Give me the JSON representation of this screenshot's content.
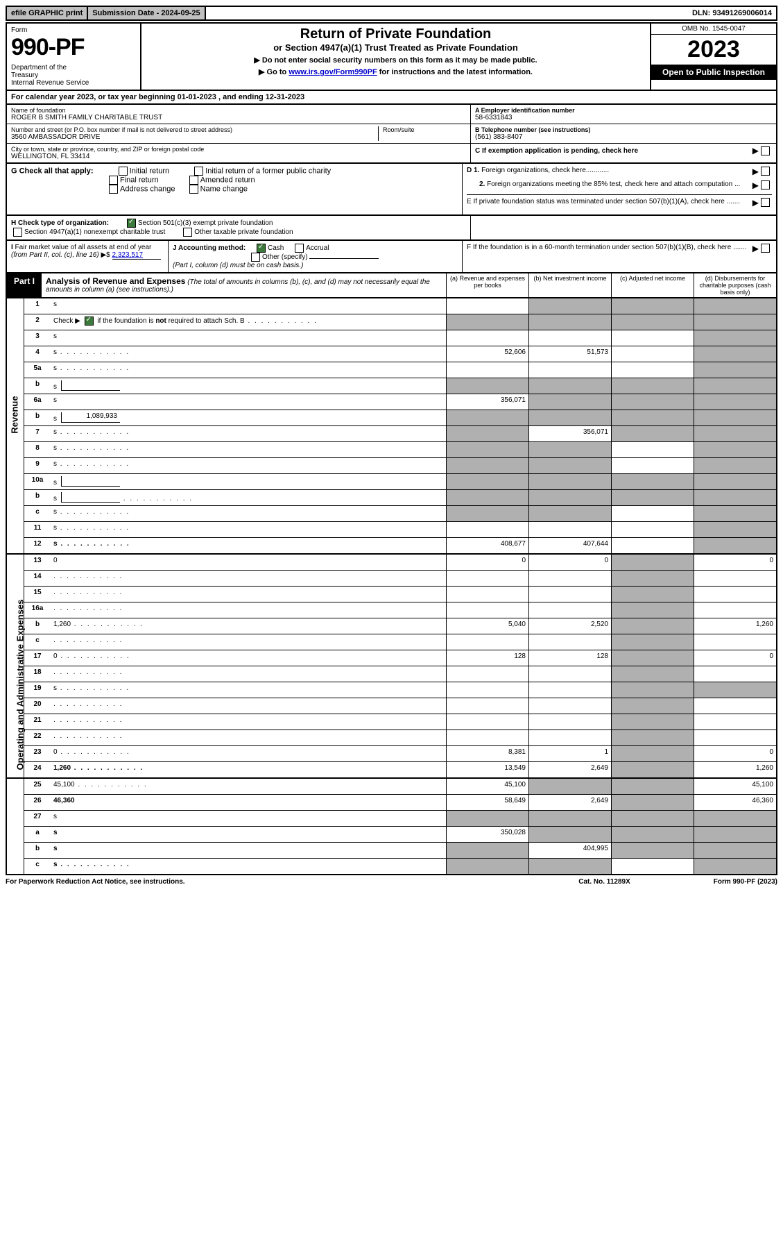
{
  "top": {
    "efile": "efile GRAPHIC print",
    "sub_label": "Submission Date - 2024-09-25",
    "dln": "DLN: 93491269006014"
  },
  "header": {
    "form_word": "Form",
    "form_number": "990-PF",
    "dept": "Department of the Treasury\nInternal Revenue Service",
    "title": "Return of Private Foundation",
    "subtitle": "or Section 4947(a)(1) Trust Treated as Private Foundation",
    "instr1": "▶ Do not enter social security numbers on this form as it may be made public.",
    "instr2_pre": "▶ Go to ",
    "instr2_link": "www.irs.gov/Form990PF",
    "instr2_post": " for instructions and the latest information.",
    "omb": "OMB No. 1545-0047",
    "year": "2023",
    "open": "Open to Public Inspection"
  },
  "cal_year": "For calendar year 2023, or tax year beginning 01-01-2023                         , and ending 12-31-2023",
  "entity": {
    "name_label": "Name of foundation",
    "name": "ROGER B SMITH FAMILY CHARITABLE TRUST",
    "addr_label": "Number and street (or P.O. box number if mail is not delivered to street address)",
    "addr": "3560 AMBASSADOR DRIVE",
    "room_label": "Room/suite",
    "city_label": "City or town, state or province, country, and ZIP or foreign postal code",
    "city": "WELLINGTON, FL  33414",
    "ein_label": "A Employer identification number",
    "ein": "58-6331843",
    "phone_label": "B  Telephone number (see instructions)",
    "phone": "(561) 383-8407",
    "c_label": "C  If exemption application is pending, check here"
  },
  "g": {
    "label": "G Check all that apply:",
    "opts": [
      "Initial return",
      "Initial return of a former public charity",
      "Final return",
      "Amended return",
      "Address change",
      "Name change"
    ]
  },
  "h": {
    "label": "H Check type of organization:",
    "opt1": "Section 501(c)(3) exempt private foundation",
    "opt2": "Section 4947(a)(1) nonexempt charitable trust",
    "opt3": "Other taxable private foundation"
  },
  "i": {
    "label": "I Fair market value of all assets at end of year (from Part II, col. (c), line 16)",
    "value": "2,323,517"
  },
  "j": {
    "label": "J Accounting method:",
    "cash": "Cash",
    "accrual": "Accrual",
    "other": "Other (specify)",
    "note": "(Part I, column (d) must be on cash basis.)"
  },
  "right_checks": {
    "d1": "D 1. Foreign organizations, check here............",
    "d2": "2. Foreign organizations meeting the 85% test, check here and attach computation ...",
    "e": "E  If private foundation status was terminated under section 507(b)(1)(A), check here .......",
    "f": "F  If the foundation is in a 60-month termination under section 507(b)(1)(B), check here ......."
  },
  "part1": {
    "label": "Part I",
    "title": "Analysis of Revenue and Expenses",
    "note": "(The total of amounts in columns (b), (c), and (d) may not necessarily equal the amounts in column (a) (see instructions).)",
    "cols": {
      "a": "(a)   Revenue and expenses per books",
      "b": "(b)  Net investment income",
      "c": "(c)  Adjusted net income",
      "d": "(d)  Disbursements for charitable purposes (cash basis only)"
    }
  },
  "side_labels": {
    "rev": "Revenue",
    "exp": "Operating and Administrative Expenses"
  },
  "rows": [
    {
      "n": "1",
      "d": "s",
      "a": "",
      "b": "s",
      "c": "s"
    },
    {
      "n": "2",
      "d": "s",
      "a": "s",
      "b": "s",
      "c": "s",
      "dots": 1
    },
    {
      "n": "3",
      "d": "s",
      "a": "",
      "b": "",
      "c": ""
    },
    {
      "n": "4",
      "d": "s",
      "a": "52,606",
      "b": "51,573",
      "c": "",
      "dots": 1
    },
    {
      "n": "5a",
      "d": "s",
      "a": "",
      "b": "",
      "c": "",
      "dots": 1
    },
    {
      "n": "b",
      "d": "s",
      "a": "s",
      "b": "s",
      "c": "s",
      "inline": ""
    },
    {
      "n": "6a",
      "d": "s",
      "a": "356,071",
      "b": "s",
      "c": "s"
    },
    {
      "n": "b",
      "d": "s",
      "a": "s",
      "b": "s",
      "c": "s",
      "inline": "1,089,933"
    },
    {
      "n": "7",
      "d": "s",
      "a": "s",
      "b": "356,071",
      "c": "s",
      "dots": 1
    },
    {
      "n": "8",
      "d": "s",
      "a": "s",
      "b": "s",
      "c": "",
      "dots": 1
    },
    {
      "n": "9",
      "d": "s",
      "a": "s",
      "b": "s",
      "c": "",
      "dots": 1
    },
    {
      "n": "10a",
      "d": "s",
      "a": "s",
      "b": "s",
      "c": "s",
      "inline": ""
    },
    {
      "n": "b",
      "d": "s",
      "a": "s",
      "b": "s",
      "c": "s",
      "inline": "",
      "dots": 1
    },
    {
      "n": "c",
      "d": "s",
      "a": "s",
      "b": "s",
      "c": "",
      "dots": 1
    },
    {
      "n": "11",
      "d": "s",
      "a": "",
      "b": "",
      "c": "",
      "dots": 1
    },
    {
      "n": "12",
      "d": "s",
      "a": "408,677",
      "b": "407,644",
      "c": "",
      "bold": 1,
      "dots": 1
    },
    {
      "n": "13",
      "d": "0",
      "a": "0",
      "b": "0",
      "c": "s"
    },
    {
      "n": "14",
      "d": "",
      "a": "",
      "b": "",
      "c": "s",
      "dots": 1
    },
    {
      "n": "15",
      "d": "",
      "a": "",
      "b": "",
      "c": "s",
      "dots": 1
    },
    {
      "n": "16a",
      "d": "",
      "a": "",
      "b": "",
      "c": "s",
      "dots": 1
    },
    {
      "n": "b",
      "d": "1,260",
      "a": "5,040",
      "b": "2,520",
      "c": "s",
      "dots": 1
    },
    {
      "n": "c",
      "d": "",
      "a": "",
      "b": "",
      "c": "s",
      "dots": 1
    },
    {
      "n": "17",
      "d": "0",
      "a": "128",
      "b": "128",
      "c": "s",
      "dots": 1
    },
    {
      "n": "18",
      "d": "",
      "a": "",
      "b": "",
      "c": "s",
      "dots": 1
    },
    {
      "n": "19",
      "d": "s",
      "a": "",
      "b": "",
      "c": "s",
      "dots": 1
    },
    {
      "n": "20",
      "d": "",
      "a": "",
      "b": "",
      "c": "s",
      "dots": 1
    },
    {
      "n": "21",
      "d": "",
      "a": "",
      "b": "",
      "c": "s",
      "dots": 1
    },
    {
      "n": "22",
      "d": "",
      "a": "",
      "b": "",
      "c": "s",
      "dots": 1
    },
    {
      "n": "23",
      "d": "0",
      "a": "8,381",
      "b": "1",
      "c": "s",
      "dots": 1
    },
    {
      "n": "24",
      "d": "1,260",
      "a": "13,549",
      "b": "2,649",
      "c": "s",
      "bold": 1,
      "dots": 1
    },
    {
      "n": "25",
      "d": "45,100",
      "a": "45,100",
      "b": "s",
      "c": "s",
      "dots": 1
    },
    {
      "n": "26",
      "d": "46,360",
      "a": "58,649",
      "b": "2,649",
      "c": "s",
      "bold": 1
    },
    {
      "n": "27",
      "d": "s",
      "a": "s",
      "b": "s",
      "c": "s"
    },
    {
      "n": "a",
      "d": "s",
      "a": "350,028",
      "b": "s",
      "c": "s",
      "bold": 1
    },
    {
      "n": "b",
      "d": "s",
      "a": "s",
      "b": "404,995",
      "c": "s",
      "bold": 1
    },
    {
      "n": "c",
      "d": "s",
      "a": "s",
      "b": "s",
      "c": "",
      "bold": 1,
      "dots": 1
    }
  ],
  "footer": {
    "left": "For Paperwork Reduction Act Notice, see instructions.",
    "mid": "Cat. No. 11289X",
    "right": "Form 990-PF (2023)"
  }
}
